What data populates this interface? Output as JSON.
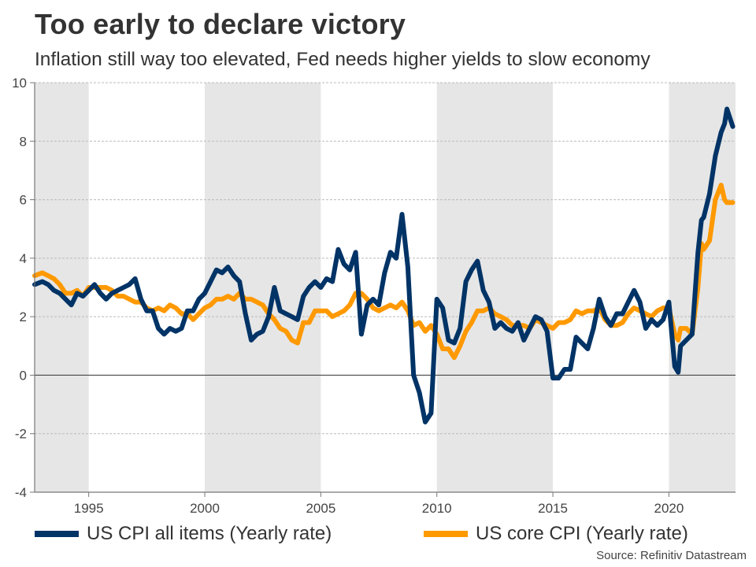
{
  "title": "Too early to declare victory",
  "subtitle": "Inflation still way too elevated, Fed needs higher yields to slow economy",
  "source": "Source: Refinitiv Datastream",
  "colors": {
    "cpi": "#003366",
    "core": "#FF9900",
    "shade": "#E6E6E6",
    "grid": "#BBBBBB",
    "axis": "#777777",
    "zero": "#333333"
  },
  "chart_data": {
    "type": "line",
    "title": "Too early to declare victory",
    "subtitle": "Inflation still way too elevated, Fed needs higher yields to slow economy",
    "xlabel": "",
    "ylabel": "",
    "xlim": [
      1992.67,
      2022.87
    ],
    "ylim": [
      -4,
      10
    ],
    "yticks": [
      -4,
      -2,
      0,
      2,
      4,
      6,
      8,
      10
    ],
    "ytick_labels": [
      "-4",
      "-2",
      "0",
      "2",
      "4",
      "6",
      "8",
      "10"
    ],
    "xticks": [
      1995,
      2000,
      2005,
      2010,
      2015,
      2020
    ],
    "xtick_labels": [
      "1995",
      "2000",
      "2005",
      "2010",
      "2015",
      "2020"
    ],
    "grid": "horizontal dashed",
    "shaded_periods": [
      [
        1992.67,
        1995
      ],
      [
        2000,
        2005
      ],
      [
        2010,
        2015
      ],
      [
        2020,
        2022.87
      ]
    ],
    "legend_position": "bottom",
    "series": [
      {
        "name": "US CPI all items (Yearly rate)",
        "x": [
          1992.67,
          1993.0,
          1993.25,
          1993.5,
          1993.75,
          1994.0,
          1994.25,
          1994.5,
          1994.75,
          1995.0,
          1995.25,
          1995.5,
          1995.75,
          1996.0,
          1996.25,
          1996.5,
          1996.75,
          1997.0,
          1997.25,
          1997.5,
          1997.75,
          1998.0,
          1998.25,
          1998.5,
          1998.75,
          1999.0,
          1999.25,
          1999.5,
          1999.75,
          2000.0,
          2000.25,
          2000.5,
          2000.75,
          2001.0,
          2001.25,
          2001.5,
          2001.75,
          2002.0,
          2002.25,
          2002.5,
          2002.75,
          2003.0,
          2003.25,
          2003.5,
          2003.75,
          2004.0,
          2004.25,
          2004.5,
          2004.75,
          2005.0,
          2005.25,
          2005.5,
          2005.75,
          2006.0,
          2006.25,
          2006.5,
          2006.75,
          2007.0,
          2007.25,
          2007.5,
          2007.75,
          2008.0,
          2008.25,
          2008.5,
          2008.75,
          2009.0,
          2009.25,
          2009.5,
          2009.75,
          2010.0,
          2010.25,
          2010.5,
          2010.75,
          2011.0,
          2011.25,
          2011.5,
          2011.75,
          2012.0,
          2012.25,
          2012.5,
          2012.75,
          2013.0,
          2013.25,
          2013.5,
          2013.75,
          2014.0,
          2014.25,
          2014.5,
          2014.75,
          2015.0,
          2015.25,
          2015.5,
          2015.75,
          2016.0,
          2016.25,
          2016.5,
          2016.75,
          2017.0,
          2017.25,
          2017.5,
          2017.75,
          2018.0,
          2018.25,
          2018.5,
          2018.75,
          2019.0,
          2019.25,
          2019.5,
          2019.75,
          2020.0,
          2020.25,
          2020.4,
          2020.5,
          2020.75,
          2021.0,
          2021.25,
          2021.4,
          2021.5,
          2021.75,
          2022.0,
          2022.25,
          2022.4,
          2022.5,
          2022.75
        ],
        "values": [
          3.1,
          3.2,
          3.1,
          2.9,
          2.8,
          2.6,
          2.4,
          2.8,
          2.7,
          2.9,
          3.1,
          2.8,
          2.6,
          2.8,
          2.9,
          3.0,
          3.1,
          3.3,
          2.6,
          2.2,
          2.2,
          1.6,
          1.4,
          1.6,
          1.5,
          1.6,
          2.2,
          2.2,
          2.6,
          2.8,
          3.2,
          3.6,
          3.5,
          3.7,
          3.4,
          3.2,
          2.1,
          1.2,
          1.4,
          1.5,
          2.0,
          3.0,
          2.2,
          2.1,
          2.0,
          1.9,
          2.7,
          3.0,
          3.2,
          3.0,
          3.3,
          3.2,
          4.3,
          3.8,
          3.6,
          4.2,
          1.4,
          2.4,
          2.6,
          2.4,
          3.5,
          4.2,
          4.0,
          5.5,
          3.7,
          0.0,
          -0.6,
          -1.6,
          -1.3,
          2.6,
          2.3,
          1.2,
          1.1,
          1.6,
          3.2,
          3.6,
          3.9,
          2.9,
          2.5,
          1.6,
          1.8,
          1.6,
          1.5,
          1.8,
          1.2,
          1.6,
          2.0,
          1.9,
          1.5,
          -0.1,
          -0.1,
          0.2,
          0.2,
          1.3,
          1.1,
          0.9,
          1.6,
          2.6,
          2.0,
          1.7,
          2.1,
          2.1,
          2.5,
          2.9,
          2.5,
          1.6,
          1.9,
          1.7,
          1.9,
          2.5,
          0.3,
          0.1,
          1.0,
          1.2,
          1.4,
          4.2,
          5.3,
          5.4,
          6.2,
          7.5,
          8.3,
          8.6,
          9.1,
          8.5
        ]
      },
      {
        "name": "US core CPI (Yearly rate)",
        "x": [
          1992.67,
          1993.0,
          1993.25,
          1993.5,
          1993.75,
          1994.0,
          1994.25,
          1994.5,
          1994.75,
          1995.0,
          1995.25,
          1995.5,
          1995.75,
          1996.0,
          1996.25,
          1996.5,
          1996.75,
          1997.0,
          1997.25,
          1997.5,
          1997.75,
          1998.0,
          1998.25,
          1998.5,
          1998.75,
          1999.0,
          1999.25,
          1999.5,
          1999.75,
          2000.0,
          2000.25,
          2000.5,
          2000.75,
          2001.0,
          2001.25,
          2001.5,
          2001.75,
          2002.0,
          2002.25,
          2002.5,
          2002.75,
          2003.0,
          2003.25,
          2003.5,
          2003.75,
          2004.0,
          2004.25,
          2004.5,
          2004.75,
          2005.0,
          2005.25,
          2005.5,
          2005.75,
          2006.0,
          2006.25,
          2006.5,
          2006.75,
          2007.0,
          2007.25,
          2007.5,
          2007.75,
          2008.0,
          2008.25,
          2008.5,
          2008.75,
          2009.0,
          2009.25,
          2009.5,
          2009.75,
          2010.0,
          2010.25,
          2010.5,
          2010.75,
          2011.0,
          2011.25,
          2011.5,
          2011.75,
          2012.0,
          2012.25,
          2012.5,
          2012.75,
          2013.0,
          2013.25,
          2013.5,
          2013.75,
          2014.0,
          2014.25,
          2014.5,
          2014.75,
          2015.0,
          2015.25,
          2015.5,
          2015.75,
          2016.0,
          2016.25,
          2016.5,
          2016.75,
          2017.0,
          2017.25,
          2017.5,
          2017.75,
          2018.0,
          2018.25,
          2018.5,
          2018.75,
          2019.0,
          2019.25,
          2019.5,
          2019.75,
          2020.0,
          2020.25,
          2020.4,
          2020.5,
          2020.75,
          2021.0,
          2021.25,
          2021.4,
          2021.5,
          2021.75,
          2022.0,
          2022.25,
          2022.4,
          2022.5,
          2022.75
        ],
        "values": [
          3.4,
          3.5,
          3.4,
          3.3,
          3.1,
          2.8,
          2.8,
          2.9,
          2.7,
          3.0,
          3.0,
          3.0,
          3.0,
          2.9,
          2.7,
          2.7,
          2.6,
          2.5,
          2.5,
          2.3,
          2.2,
          2.3,
          2.2,
          2.4,
          2.3,
          2.1,
          2.1,
          1.9,
          2.1,
          2.3,
          2.4,
          2.6,
          2.6,
          2.7,
          2.6,
          2.8,
          2.6,
          2.6,
          2.5,
          2.4,
          2.1,
          1.9,
          1.6,
          1.5,
          1.2,
          1.1,
          1.8,
          1.8,
          2.2,
          2.2,
          2.2,
          2.0,
          2.1,
          2.2,
          2.4,
          2.8,
          2.8,
          2.6,
          2.3,
          2.2,
          2.3,
          2.4,
          2.3,
          2.5,
          2.2,
          1.7,
          1.8,
          1.5,
          1.7,
          1.4,
          0.9,
          0.9,
          0.6,
          1.0,
          1.5,
          1.8,
          2.2,
          2.2,
          2.3,
          2.1,
          2.0,
          1.9,
          1.7,
          1.7,
          1.7,
          1.6,
          1.9,
          1.8,
          1.7,
          1.6,
          1.8,
          1.8,
          1.9,
          2.2,
          2.1,
          2.2,
          2.2,
          2.3,
          1.9,
          1.7,
          1.7,
          1.8,
          2.1,
          2.3,
          2.2,
          2.1,
          2.0,
          2.2,
          2.3,
          2.3,
          1.4,
          1.2,
          1.6,
          1.6,
          1.4,
          3.0,
          4.5,
          4.3,
          4.6,
          6.0,
          6.5,
          6.0,
          5.9,
          5.9
        ]
      }
    ],
    "legend": [
      {
        "label": "US CPI all items (Yearly rate)",
        "color": "#003366"
      },
      {
        "label": "US core CPI (Yearly rate)",
        "color": "#FF9900"
      }
    ]
  }
}
